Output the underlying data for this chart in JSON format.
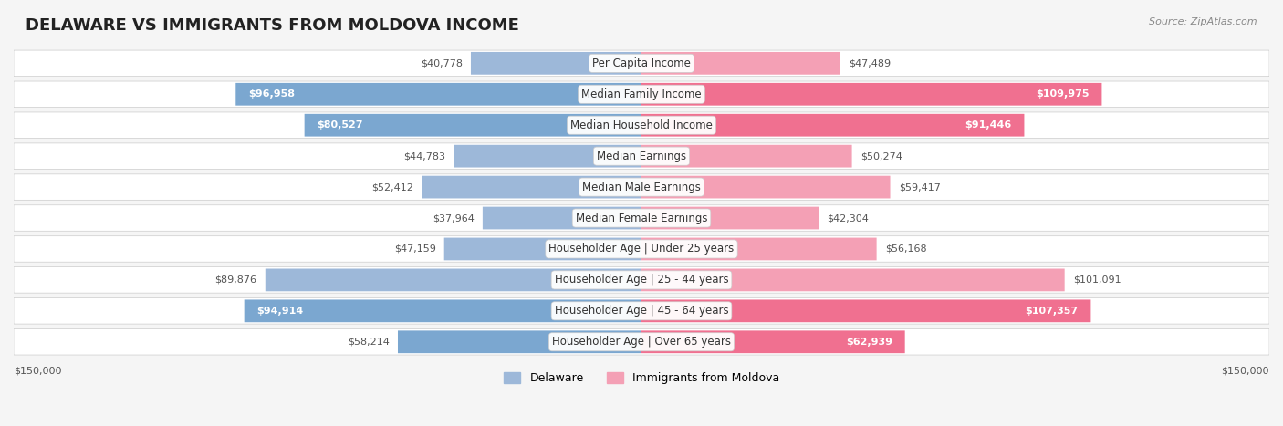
{
  "title": "DELAWARE VS IMMIGRANTS FROM MOLDOVA INCOME",
  "source": "Source: ZipAtlas.com",
  "categories": [
    "Per Capita Income",
    "Median Family Income",
    "Median Household Income",
    "Median Earnings",
    "Median Male Earnings",
    "Median Female Earnings",
    "Householder Age | Under 25 years",
    "Householder Age | 25 - 44 years",
    "Householder Age | 45 - 64 years",
    "Householder Age | Over 65 years"
  ],
  "delaware_values": [
    40778,
    96958,
    80527,
    44783,
    52412,
    37964,
    47159,
    89876,
    94914,
    58214
  ],
  "moldova_values": [
    47489,
    109975,
    91446,
    50274,
    59417,
    42304,
    56168,
    101091,
    107357,
    62939
  ],
  "delaware_color": "#9db8d9",
  "delaware_color_highlight": "#7ba7d0",
  "moldova_color": "#f4a0b5",
  "moldova_color_highlight": "#f07090",
  "axis_max": 150000,
  "background_color": "#f5f5f5",
  "bar_bg_color": "#e8e8e8",
  "label_fontsize": 9,
  "title_fontsize": 13,
  "legend_delaware": "Delaware",
  "legend_moldova": "Immigrants from Moldova",
  "highlight_rows": [
    1,
    2,
    8,
    9
  ]
}
